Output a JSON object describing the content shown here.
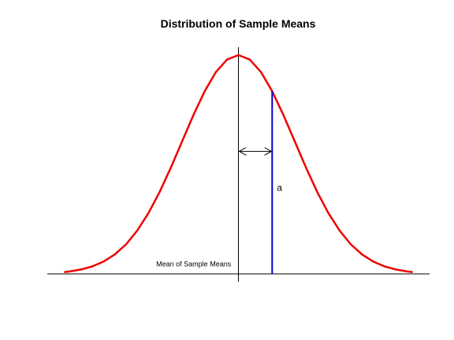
{
  "chart_data": {
    "type": "line",
    "title": "Distribution of Sample Means",
    "xlabel": "",
    "ylabel": "",
    "xlim": [
      -3.4,
      3.4
    ],
    "ylim": [
      0,
      1
    ],
    "grid": false,
    "series": [
      {
        "color": "#ee0000",
        "x": [
          -3.1,
          -3.0,
          -2.8,
          -2.6,
          -2.4,
          -2.2,
          -2.0,
          -1.8,
          -1.6,
          -1.4,
          -1.2,
          -1.0,
          -0.8,
          -0.6,
          -0.4,
          -0.2,
          0.0,
          0.2,
          0.4,
          0.6,
          0.8,
          1.0,
          1.2,
          1.4,
          1.6,
          1.8,
          2.0,
          2.2,
          2.4,
          2.6,
          2.8,
          3.0,
          3.1
        ],
        "y": [
          0.008,
          0.011,
          0.02,
          0.034,
          0.056,
          0.089,
          0.135,
          0.198,
          0.278,
          0.375,
          0.487,
          0.607,
          0.726,
          0.835,
          0.923,
          0.98,
          1.0,
          0.98,
          0.923,
          0.835,
          0.726,
          0.607,
          0.487,
          0.375,
          0.278,
          0.198,
          0.135,
          0.089,
          0.056,
          0.034,
          0.02,
          0.011,
          0.008
        ]
      }
    ],
    "mean_line": {
      "x": 0,
      "color": "#000000"
    },
    "marker_line": {
      "x": 0.6,
      "color": "#0000cc",
      "label": "a"
    },
    "distance_arrow": {
      "from": 0,
      "to": 0.6,
      "y": 0.56
    },
    "annotations": [
      {
        "text": "Mean of Sample Means",
        "x": -0.13,
        "y": 0.035
      }
    ]
  }
}
